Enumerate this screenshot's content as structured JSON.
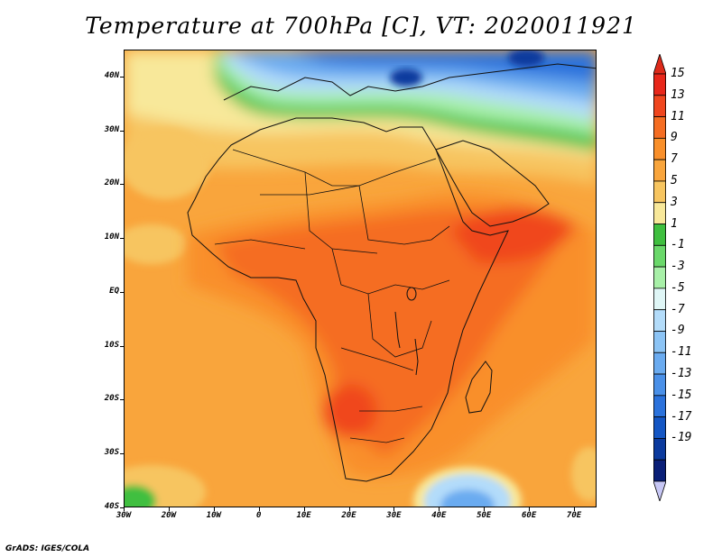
{
  "title": "Temperature at 700hPa [C], VT: 2020011921",
  "credit": "GrADS: IGES/COLA",
  "lat_labels": [
    "40N",
    "30N",
    "20N",
    "10N",
    "EQ",
    "10S",
    "20S",
    "30S",
    "40S"
  ],
  "lat_values": [
    40,
    30,
    20,
    10,
    0,
    -10,
    -20,
    -30,
    -40
  ],
  "lon_labels": [
    "30W",
    "20W",
    "10W",
    "0",
    "10E",
    "20E",
    "30E",
    "40E",
    "50E",
    "60E",
    "70E"
  ],
  "lon_values": [
    -30,
    -20,
    -10,
    0,
    10,
    20,
    30,
    40,
    50,
    60,
    70
  ],
  "map_extent": {
    "lon": [
      -30,
      75
    ],
    "lat": [
      -40,
      45
    ]
  },
  "colorbar": {
    "labels": [
      "15",
      "13",
      "11",
      "9",
      "7",
      "5",
      "3",
      "1",
      "-1",
      "-3",
      "-5",
      "-7",
      "-9",
      "-11",
      "-13",
      "-15",
      "-17",
      "-19"
    ],
    "colors": [
      "#e8271a",
      "#f0461e",
      "#f56d22",
      "#f98f2a",
      "#f9a53c",
      "#f7c560",
      "#f8e89a",
      "#3fbf3f",
      "#6ad86a",
      "#a8f0a8",
      "#dff6f6",
      "#b3dcfa",
      "#8cc4f5",
      "#6aabf0",
      "#4a90e8",
      "#2b72dc",
      "#1456c4",
      "#0b3a9e",
      "#0a1f78"
    ],
    "top_triangle_color": "#dd2a1a",
    "bottom_triangle_color": "#c7c7f5"
  }
}
